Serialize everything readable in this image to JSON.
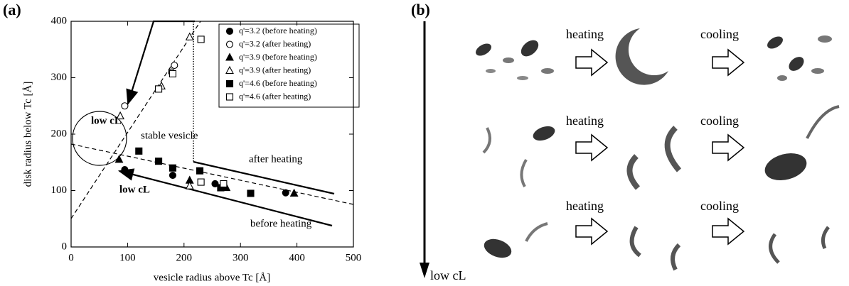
{
  "chart_data": {
    "type": "scatter",
    "panel_label": "(a)",
    "xlabel": "vesicle radius above Tc [Å]",
    "ylabel": "disk radius below Tc [Å]",
    "xlim": [
      0,
      500
    ],
    "ylim": [
      0,
      400
    ],
    "xticks": [
      0,
      100,
      200,
      300,
      400,
      500
    ],
    "yticks": [
      0,
      100,
      200,
      300,
      400
    ],
    "legend": "upper right",
    "series": [
      {
        "name": "q'=3.2 (before heating)",
        "marker": "circle",
        "filled": true,
        "x": [
          95,
          180,
          255,
          380
        ],
        "values": [
          137,
          127,
          112,
          96
        ]
      },
      {
        "name": "q'=3.2 (after heating)",
        "marker": "circle",
        "filled": false,
        "x": [
          95,
          178,
          183
        ],
        "values": [
          250,
          310,
          322
        ]
      },
      {
        "name": "q'=3.9 (before heating)",
        "marker": "triangle",
        "filled": true,
        "x": [
          85,
          210,
          275,
          395
        ],
        "values": [
          155,
          118,
          105,
          95
        ]
      },
      {
        "name": "q'=3.9 (after heating)",
        "marker": "triangle",
        "filled": false,
        "x": [
          87,
          160,
          210,
          210
        ],
        "values": [
          232,
          285,
          372,
          108
        ]
      },
      {
        "name": "q'=4.6 (before heating)",
        "marker": "square",
        "filled": true,
        "x": [
          120,
          155,
          180,
          228,
          265,
          318
        ],
        "values": [
          170,
          152,
          140,
          135,
          105,
          95
        ]
      },
      {
        "name": "q'=4.6 (after heating)",
        "marker": "square",
        "filled": false,
        "x": [
          155,
          180,
          230,
          230,
          270
        ],
        "values": [
          280,
          307,
          368,
          115,
          112
        ]
      }
    ],
    "annotations": [
      "low cL",
      "stable vesicle",
      "after heating",
      "low cL",
      "before heating"
    ]
  },
  "panel_b": {
    "label": "(b)",
    "axis_label": "low cL",
    "rows": [
      {
        "left": "heating",
        "right": "cooling"
      },
      {
        "left": "heating",
        "right": "cooling"
      },
      {
        "left": "heating",
        "right": "cooling"
      }
    ]
  }
}
